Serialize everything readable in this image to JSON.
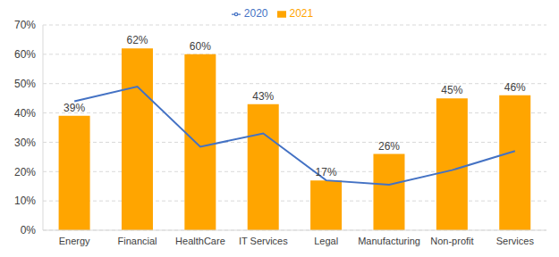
{
  "chart_data": {
    "type": "bar",
    "categories": [
      "Energy",
      "Financial",
      "HealthCare",
      "IT Services",
      "Legal",
      "Manufacturing",
      "Non-profit",
      "Services"
    ],
    "series": [
      {
        "name": "2021",
        "type": "bar",
        "color": "#ffa500",
        "values": [
          39,
          62,
          60,
          43,
          17,
          26,
          45,
          46
        ],
        "data_labels": true,
        "value_labels": [
          "39%",
          "62%",
          "60%",
          "43%",
          "17%",
          "26%",
          "45%",
          "46%"
        ]
      },
      {
        "name": "2020",
        "type": "line",
        "color": "#4472c4",
        "values": [
          44,
          49,
          28.5,
          33,
          17,
          15.5,
          20.5,
          27
        ],
        "marker": "none"
      }
    ],
    "ylim": [
      0,
      70
    ],
    "yticks": [
      {
        "value": 0,
        "label": "0%"
      },
      {
        "value": 10,
        "label": "10%"
      },
      {
        "value": 20,
        "label": "20%"
      },
      {
        "value": 30,
        "label": "30%"
      },
      {
        "value": 40,
        "label": "40%"
      },
      {
        "value": 50,
        "label": "50%"
      },
      {
        "value": 60,
        "label": "60%"
      },
      {
        "value": 70,
        "label": "70%"
      }
    ],
    "grid": true,
    "legend": "top"
  }
}
